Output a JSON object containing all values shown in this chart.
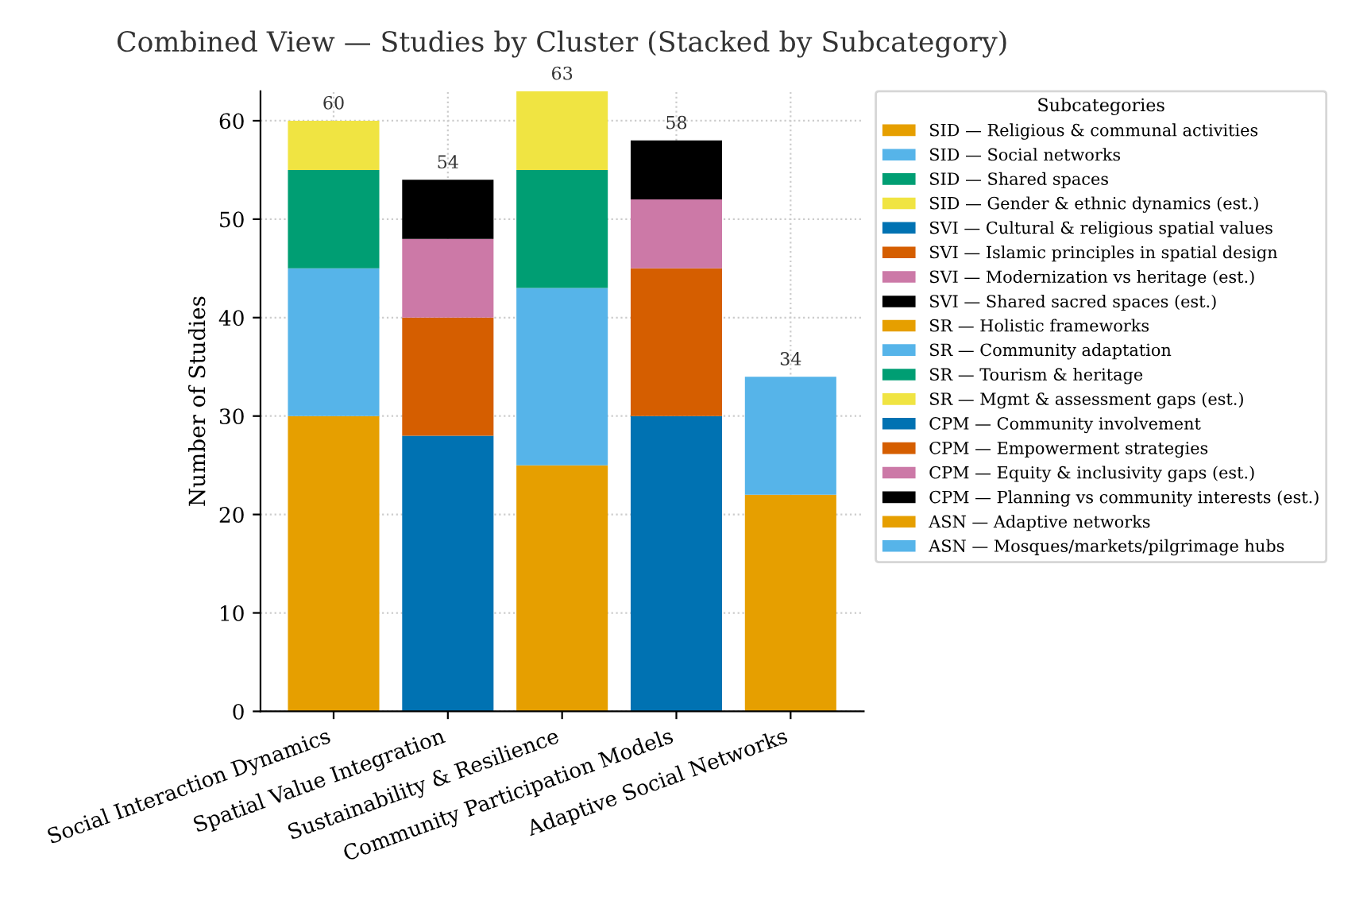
{
  "chart_data": {
    "type": "bar",
    "stacked": true,
    "title": "Combined View — Studies by Cluster (Stacked by Subcategory)",
    "ylabel": "Number of Studies",
    "legend_title": "Subcategories",
    "legend": "right",
    "categories": [
      "Social Interaction Dynamics",
      "Spatial Value Integration",
      "Sustainability & Resilience",
      "Community Participation Models",
      "Adaptive Social Networks"
    ],
    "ylim": [
      0,
      63
    ],
    "yticks": [
      0,
      10,
      20,
      30,
      40,
      50,
      60
    ],
    "grid": true,
    "totals": [
      "60",
      "54",
      "63",
      "58",
      "34"
    ],
    "series": [
      {
        "name": "SID — Religious & communal activities",
        "color": "#e69f00",
        "values": [
          30,
          null,
          null,
          null,
          null
        ]
      },
      {
        "name": "SID — Social networks",
        "color": "#56b4e9",
        "values": [
          15,
          null,
          null,
          null,
          null
        ]
      },
      {
        "name": "SID — Shared spaces",
        "color": "#009e73",
        "values": [
          10,
          null,
          null,
          null,
          null
        ]
      },
      {
        "name": "SID — Gender & ethnic dynamics (est.)",
        "color": "#f0e442",
        "values": [
          5,
          null,
          null,
          null,
          null
        ]
      },
      {
        "name": "SVI — Cultural & religious spatial values",
        "color": "#0072b2",
        "values": [
          null,
          28,
          null,
          null,
          null
        ]
      },
      {
        "name": "SVI — Islamic principles in spatial design",
        "color": "#d55e00",
        "values": [
          null,
          12,
          null,
          null,
          null
        ]
      },
      {
        "name": "SVI — Modernization vs heritage (est.)",
        "color": "#cc79a7",
        "values": [
          null,
          8,
          null,
          null,
          null
        ]
      },
      {
        "name": "SVI — Shared sacred spaces (est.)",
        "color": "#000000",
        "values": [
          null,
          6,
          null,
          null,
          null
        ]
      },
      {
        "name": "SR — Holistic frameworks",
        "color": "#e69f00",
        "values": [
          null,
          null,
          25,
          null,
          null
        ]
      },
      {
        "name": "SR — Community adaptation",
        "color": "#56b4e9",
        "values": [
          null,
          null,
          18,
          null,
          null
        ]
      },
      {
        "name": "SR — Tourism & heritage",
        "color": "#009e73",
        "values": [
          null,
          null,
          12,
          null,
          null
        ]
      },
      {
        "name": "SR — Mgmt & assessment gaps (est.)",
        "color": "#f0e442",
        "values": [
          null,
          null,
          8,
          null,
          null
        ]
      },
      {
        "name": "CPM — Community involvement",
        "color": "#0072b2",
        "values": [
          null,
          null,
          null,
          30,
          null
        ]
      },
      {
        "name": "CPM — Empowerment strategies",
        "color": "#d55e00",
        "values": [
          null,
          null,
          null,
          15,
          null
        ]
      },
      {
        "name": "CPM — Equity & inclusivity gaps (est.)",
        "color": "#cc79a7",
        "values": [
          null,
          null,
          null,
          7,
          null
        ]
      },
      {
        "name": "CPM — Planning vs community interests (est.)",
        "color": "#000000",
        "values": [
          null,
          null,
          null,
          6,
          null
        ]
      },
      {
        "name": "ASN — Adaptive networks",
        "color": "#e69f00",
        "values": [
          null,
          null,
          null,
          null,
          22
        ]
      },
      {
        "name": "ASN — Mosques/markets/pilgrimage hubs",
        "color": "#56b4e9",
        "values": [
          null,
          null,
          null,
          null,
          12
        ]
      }
    ]
  }
}
